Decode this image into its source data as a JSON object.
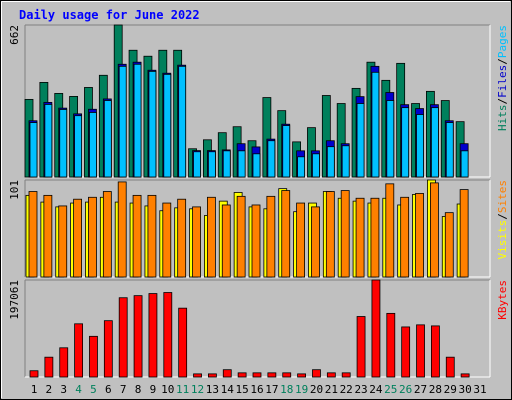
{
  "title": "Daily usage for June 2022",
  "categories": [
    "1",
    "2",
    "3",
    "4",
    "5",
    "6",
    "7",
    "8",
    "9",
    "10",
    "11",
    "12",
    "13",
    "14",
    "15",
    "16",
    "17",
    "18",
    "19",
    "20",
    "21",
    "22",
    "23",
    "24",
    "25",
    "26",
    "27",
    "28",
    "29",
    "30",
    "31"
  ],
  "category_colors": [
    "#000000",
    "#000000",
    "#000000",
    "#00805c",
    "#00805c",
    "#000000",
    "#000000",
    "#000000",
    "#000000",
    "#000000",
    "#00805c",
    "#00805c",
    "#000000",
    "#000000",
    "#000000",
    "#000000",
    "#000000",
    "#00805c",
    "#00805c",
    "#000000",
    "#000000",
    "#000000",
    "#000000",
    "#000000",
    "#00805c",
    "#00805c",
    "#000000",
    "#000000",
    "#000000",
    "#000000",
    "#000000"
  ],
  "legend_separator": "/",
  "chart_data": [
    {
      "type": "bar",
      "ylim": [
        0,
        662
      ],
      "yticks": [
        662
      ],
      "series": [
        {
          "name": "Hits",
          "color": "#00805c",
          "values": [
            338,
            412,
            364,
            351,
            390,
            443,
            662,
            552,
            526,
            552,
            552,
            123,
            162,
            193,
            219,
            158,
            346,
            289,
            153,
            215,
            355,
            320,
            386,
            500,
            421,
            495,
            320,
            373,
            333,
            241,
            0
          ]
        },
        {
          "name": "Files",
          "color": "#0000cc",
          "values": [
            245,
            325,
            300,
            275,
            295,
            340,
            491,
            500,
            465,
            452,
            487,
            115,
            115,
            118,
            145,
            131,
            165,
            230,
            114,
            114,
            158,
            145,
            350,
            482,
            368,
            315,
            298,
            315,
            245,
            145,
            0
          ]
        },
        {
          "name": "Pages",
          "color": "#00c0ff",
          "values": [
            237,
            316,
            294,
            267,
            281,
            333,
            482,
            491,
            460,
            447,
            482,
            110,
            110,
            114,
            114,
            101,
            158,
            224,
            88,
            101,
            132,
            136,
            320,
            456,
            333,
            302,
            272,
            302,
            237,
            114,
            0
          ]
        }
      ]
    },
    {
      "type": "bar",
      "ylim": [
        0,
        101
      ],
      "yticks": [
        101
      ],
      "series": [
        {
          "name": "Visits",
          "color": "#ffff00",
          "values": [
            85,
            78,
            73,
            77,
            78,
            83,
            78,
            77,
            74,
            69,
            72,
            71,
            64,
            79,
            88,
            73,
            71,
            92,
            68,
            77,
            89,
            82,
            79,
            77,
            82,
            75,
            86,
            101,
            63,
            76,
            0
          ]
        },
        {
          "name": "Sites",
          "color": "#ff8000",
          "values": [
            89,
            85,
            74,
            81,
            83,
            89,
            99,
            85,
            85,
            77,
            81,
            73,
            83,
            75,
            84,
            75,
            84,
            90,
            77,
            73,
            89,
            90,
            82,
            82,
            97,
            83,
            87,
            98,
            67,
            91,
            0
          ]
        }
      ]
    },
    {
      "type": "bar",
      "ylim": [
        0,
        197061
      ],
      "yticks": [
        197061
      ],
      "series": [
        {
          "name": "KBytes",
          "color": "#ff0000",
          "values": [
            12714,
            40261,
            59332,
            108069,
            82641,
            114426,
            161044,
            165282,
            169520,
            171639,
            139854,
            6357,
            6357,
            14833,
            8476,
            8476,
            8476,
            8476,
            6357,
            14833,
            8476,
            8476,
            122902,
            197061,
            129259,
            101712,
            105950,
            103831,
            40261,
            6357,
            0
          ]
        }
      ]
    }
  ]
}
